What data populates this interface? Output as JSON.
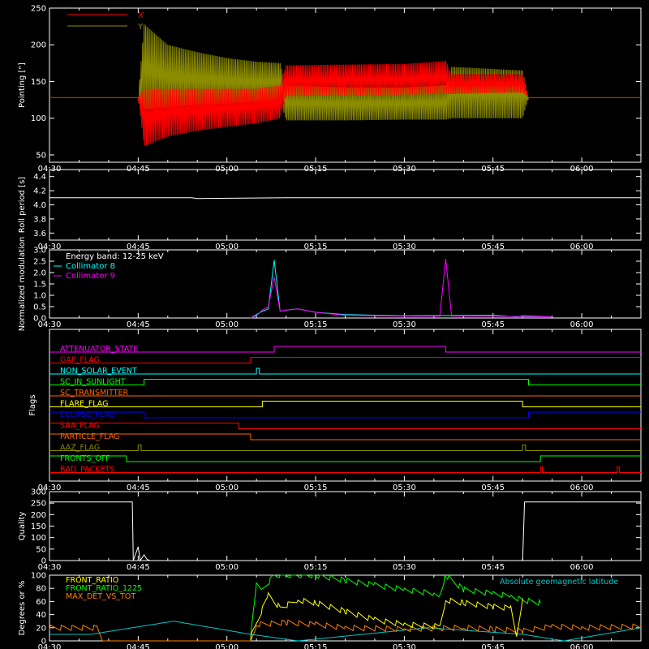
{
  "time_axis": {
    "start": "04:30",
    "end": "06:10",
    "ticks": [
      "04:30",
      "04:45",
      "05:00",
      "05:15",
      "05:30",
      "05:45",
      "06:00"
    ]
  },
  "colors": {
    "background": "#000000",
    "axis": "#ffffff",
    "pointing_x": "#ff0000",
    "pointing_y": "#8c8c00",
    "collimator_8": "#00ffff",
    "collimator_9": "#ff00ff",
    "front_ratio": "#ffff00",
    "front_ratio_1225": "#00ff00",
    "max_det_vs_tot": "#ff8000",
    "geomagnetic": "#00c8c8"
  },
  "chart_data": [
    {
      "id": "pointing",
      "type": "area",
      "ylabel": "Pointing [\"]",
      "ylim": [
        40,
        250
      ],
      "yticks": [
        50,
        100,
        150,
        200,
        250
      ],
      "legend_position": "top-left",
      "series": [
        {
          "name": "X",
          "color": "#ff0000",
          "points": [
            {
              "t": "04:30",
              "low": 128,
              "high": 128
            },
            {
              "t": "04:45",
              "low": 128,
              "high": 128
            },
            {
              "t": "04:46",
              "low": 62,
              "high": 140
            },
            {
              "t": "04:50",
              "low": 75,
              "high": 140
            },
            {
              "t": "04:55",
              "low": 83,
              "high": 140
            },
            {
              "t": "05:00",
              "low": 88,
              "high": 140
            },
            {
              "t": "05:05",
              "low": 93,
              "high": 140
            },
            {
              "t": "05:09",
              "low": 100,
              "high": 145
            },
            {
              "t": "05:10",
              "low": 130,
              "high": 172
            },
            {
              "t": "05:20",
              "low": 131,
              "high": 173
            },
            {
              "t": "05:30",
              "low": 132,
              "high": 174
            },
            {
              "t": "05:37",
              "low": 133,
              "high": 178
            },
            {
              "t": "05:38",
              "low": 133,
              "high": 160
            },
            {
              "t": "05:50",
              "low": 135,
              "high": 160
            },
            {
              "t": "05:51",
              "low": 128,
              "high": 128
            },
            {
              "t": "06:10",
              "low": 128,
              "high": 128
            }
          ]
        },
        {
          "name": "Y",
          "color": "#8c8c00",
          "points": [
            {
              "t": "04:30",
              "low": 128,
              "high": 128
            },
            {
              "t": "04:45",
              "low": 128,
              "high": 128
            },
            {
              "t": "04:46",
              "low": 112,
              "high": 228
            },
            {
              "t": "04:50",
              "low": 115,
              "high": 200
            },
            {
              "t": "04:55",
              "low": 118,
              "high": 190
            },
            {
              "t": "05:00",
              "low": 120,
              "high": 182
            },
            {
              "t": "05:05",
              "low": 122,
              "high": 177
            },
            {
              "t": "05:09",
              "low": 125,
              "high": 175
            },
            {
              "t": "05:10",
              "low": 97,
              "high": 145
            },
            {
              "t": "05:20",
              "low": 97,
              "high": 142
            },
            {
              "t": "05:30",
              "low": 98,
              "high": 142
            },
            {
              "t": "05:37",
              "low": 98,
              "high": 145
            },
            {
              "t": "05:38",
              "low": 100,
              "high": 170
            },
            {
              "t": "05:50",
              "low": 100,
              "high": 165
            },
            {
              "t": "05:51",
              "low": 128,
              "high": 128
            },
            {
              "t": "06:10",
              "low": 128,
              "high": 128
            }
          ]
        }
      ]
    },
    {
      "id": "roll",
      "type": "line",
      "ylabel": "Roll period [s]",
      "ylim": [
        3.5,
        4.5
      ],
      "yticks": [
        3.6,
        3.8,
        4.0,
        4.2,
        4.4
      ],
      "series": [
        {
          "color": "#ffffff",
          "x": [
            "04:30",
            "04:54",
            "04:55",
            "05:10",
            "05:30",
            "05:50",
            "05:51",
            "06:10"
          ],
          "y": [
            4.1,
            4.1,
            4.09,
            4.1,
            4.1,
            4.1,
            4.1,
            4.1
          ]
        }
      ]
    },
    {
      "id": "modulation",
      "type": "line",
      "ylabel": "Normalized modulation",
      "ylim": [
        0,
        3.0
      ],
      "yticks": [
        0.0,
        0.5,
        1.0,
        1.5,
        2.0,
        2.5,
        3.0
      ],
      "legend_title": "Energy band: 12-25 keV",
      "legend_position": "top-left",
      "series": [
        {
          "name": "Collimator 8",
          "color": "#00ffff",
          "x": [
            "05:04",
            "05:05",
            "05:06",
            "05:07",
            "05:08",
            "05:09",
            "05:10",
            "05:12",
            "05:15",
            "05:20",
            "05:30",
            "05:45",
            "05:49",
            "05:50",
            "05:55"
          ],
          "y": [
            0.0,
            0.15,
            0.3,
            0.4,
            2.55,
            0.3,
            0.35,
            0.4,
            0.25,
            0.15,
            0.1,
            0.12,
            0.05,
            0.1,
            0.05
          ]
        },
        {
          "name": "Collimator 9",
          "color": "#ff00ff",
          "x": [
            "05:04",
            "05:05",
            "05:06",
            "05:07",
            "05:08",
            "05:09",
            "05:10",
            "05:12",
            "05:15",
            "05:20",
            "05:30",
            "05:36",
            "05:37",
            "05:38",
            "05:45",
            "05:55"
          ],
          "y": [
            0.0,
            0.1,
            0.35,
            0.5,
            1.8,
            0.3,
            0.35,
            0.4,
            0.25,
            0.12,
            0.08,
            0.08,
            2.6,
            0.08,
            0.08,
            0.05
          ]
        }
      ]
    },
    {
      "id": "flags",
      "type": "line",
      "ylabel": "Flags",
      "rows": [
        {
          "name": "ATTENUATOR_STATE",
          "color": "#ff00ff",
          "segments": [
            [
              "04:30",
              0
            ],
            [
              "05:08",
              1
            ],
            [
              "05:37",
              0
            ]
          ]
        },
        {
          "name": "GAP_FLAG",
          "color": "#ff0000",
          "segments": [
            [
              "04:30",
              0
            ],
            [
              "05:04",
              1
            ]
          ]
        },
        {
          "name": "NON_SOLAR_EVENT",
          "color": "#00ffff",
          "segments": [
            [
              "04:30",
              0
            ],
            [
              "05:05",
              1
            ],
            [
              "05:05:30",
              0
            ]
          ]
        },
        {
          "name": "SC_IN_SUNLIGHT",
          "color": "#00ff00",
          "segments": [
            [
              "04:30",
              0
            ],
            [
              "04:46",
              1
            ],
            [
              "05:51",
              0
            ]
          ]
        },
        {
          "name": "SC_TRANSMITTER",
          "color": "#ff6400",
          "segments": [
            [
              "04:30",
              0
            ]
          ]
        },
        {
          "name": "FLARE_FLAG",
          "color": "#ffff00",
          "segments": [
            [
              "04:30",
              0
            ],
            [
              "05:06",
              1
            ],
            [
              "05:50",
              0
            ]
          ]
        },
        {
          "name": "ECLIPSE_FLAG",
          "color": "#0000ff",
          "segments": [
            [
              "04:30",
              1
            ],
            [
              "04:46",
              0
            ],
            [
              "05:51",
              1
            ]
          ]
        },
        {
          "name": "SAA_FLAG",
          "color": "#ff0000",
          "segments": [
            [
              "04:30",
              1
            ],
            [
              "05:02",
              0
            ]
          ]
        },
        {
          "name": "PARTICLE_FLAG",
          "color": "#ff6400",
          "segments": [
            [
              "04:30",
              1
            ],
            [
              "05:04",
              0
            ]
          ]
        },
        {
          "name": "AAZ_FLAG",
          "color": "#8c8c00",
          "segments": [
            [
              "04:30",
              0
            ],
            [
              "04:45",
              1
            ],
            [
              "04:45:30",
              0
            ],
            [
              "05:50",
              1
            ],
            [
              "05:50:30",
              0
            ]
          ]
        },
        {
          "name": "FRONTS_OFF",
          "color": "#00ff00",
          "segments": [
            [
              "04:30",
              1
            ],
            [
              "04:43",
              0
            ],
            [
              "05:53",
              1
            ]
          ]
        },
        {
          "name": "BAD_PACKETS",
          "color": "#ff0000",
          "segments": [
            [
              "04:30",
              0
            ],
            [
              "05:53",
              1
            ],
            [
              "05:53:20",
              0
            ],
            [
              "06:06",
              1
            ],
            [
              "06:06:20",
              0
            ]
          ]
        }
      ]
    },
    {
      "id": "quality",
      "type": "line",
      "ylabel": "Quality",
      "ylim": [
        0,
        300
      ],
      "yticks": [
        0,
        50,
        100,
        150,
        200,
        250,
        300
      ],
      "series": [
        {
          "color": "#ffffff",
          "x": [
            "04:30",
            "04:44",
            "04:44:10",
            "04:45",
            "04:45:20",
            "04:46",
            "04:46:30",
            "04:47",
            "05:50",
            "05:50:20",
            "06:10"
          ],
          "y": [
            255,
            255,
            0,
            60,
            0,
            25,
            5,
            0,
            0,
            255,
            255
          ]
        }
      ]
    },
    {
      "id": "ratios",
      "type": "line",
      "ylabel": "Degrees or %",
      "ylim": [
        0,
        100
      ],
      "yticks": [
        0,
        20,
        40,
        60,
        80,
        100
      ],
      "legend_position": "top-left",
      "annotation": "Absolute geomagnetic latitude",
      "series": [
        {
          "name": "FRONT_RATIO",
          "color": "#ffff00",
          "x": [
            "05:04",
            "05:07",
            "05:09",
            "05:12",
            "05:15",
            "05:20",
            "05:25",
            "05:30",
            "05:36",
            "05:37",
            "05:40",
            "05:45",
            "05:48",
            "05:49",
            "05:50"
          ],
          "y": [
            5,
            70,
            50,
            62,
            58,
            45,
            32,
            25,
            22,
            62,
            58,
            52,
            50,
            5,
            65
          ]
        },
        {
          "name": "FRONT_RATIO_1225",
          "color": "#00ff00",
          "x": [
            "05:04",
            "05:05",
            "05:06",
            "05:08",
            "05:15",
            "05:20",
            "05:25",
            "05:30",
            "05:35",
            "05:36",
            "05:37",
            "05:40",
            "05:45",
            "05:48",
            "05:50",
            "05:53"
          ],
          "y": [
            5,
            85,
            78,
            100,
            100,
            92,
            85,
            78,
            72,
            70,
            100,
            78,
            72,
            68,
            62,
            58
          ]
        },
        {
          "name": "MAX_DET_VS_TOT",
          "color": "#ff8000",
          "x": [
            "04:30",
            "04:38",
            "04:39",
            "05:04",
            "05:05",
            "05:10",
            "05:15",
            "05:20",
            "05:30",
            "05:40",
            "05:45",
            "05:50",
            "05:55",
            "06:00",
            "06:10"
          ],
          "y": [
            20,
            20,
            0,
            0,
            25,
            28,
            25,
            20,
            18,
            20,
            18,
            15,
            22,
            20,
            22
          ]
        },
        {
          "name": "Absolute geomagnetic latitude",
          "color": "#00c8c8",
          "x": [
            "04:30",
            "04:37",
            "04:51",
            "05:04",
            "05:12",
            "05:34",
            "05:50",
            "05:57",
            "06:10"
          ],
          "y": [
            10,
            10,
            30,
            10,
            0,
            20,
            10,
            0,
            20
          ]
        }
      ]
    }
  ]
}
